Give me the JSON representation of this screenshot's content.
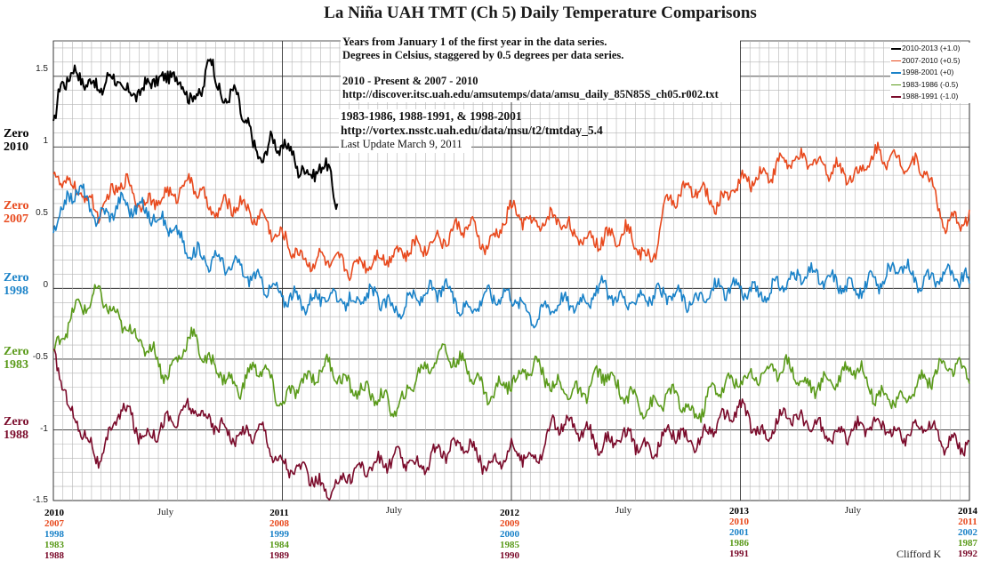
{
  "title": "La Niña UAH TMT (Ch 5) Daily Temperature Comparisons",
  "notes": {
    "line1": "Years from January 1 of the first year in the data series.",
    "line2": "Degrees in Celsius, staggered by 0.5 degrees per data series.",
    "line3": "2010 - Present & 2007 - 2010",
    "line4": "http://discover.itsc.uah.edu/amsutemps/data/amsu_daily_85N85S_ch05.r002.txt",
    "line5": "1983-1986, 1988-1991, & 1998-2001",
    "line6": "http://vortex.nsstc.uah.edu/data/msu/t2/tmtday_5.4",
    "line7": "Last Update March 9, 2011"
  },
  "credit": "Clifford K",
  "zero_labels": [
    {
      "word": "Zero",
      "year": "2010",
      "color": "#000000"
    },
    {
      "word": "Zero",
      "year": "2007",
      "color": "#e8491d"
    },
    {
      "word": "Zero",
      "year": "1998",
      "color": "#1a82c8"
    },
    {
      "word": "Zero",
      "year": "1983",
      "color": "#5a9a1a"
    },
    {
      "word": "Zero",
      "year": "1988",
      "color": "#7a0a2a"
    }
  ],
  "x_mid_labels": [
    "July",
    "July",
    "July",
    "July"
  ],
  "x_year_columns": [
    [
      "2010",
      "2007",
      "1998",
      "1983",
      "1988"
    ],
    [
      "2011",
      "2008",
      "1999",
      "1984",
      "1989"
    ],
    [
      "2012",
      "2009",
      "2000",
      "1985",
      "1990"
    ],
    [
      "2013",
      "2010",
      "2001",
      "1986",
      "1991"
    ],
    [
      "2014",
      "2011",
      "2002",
      "1987",
      "1992"
    ]
  ],
  "chart_data": {
    "type": "line",
    "title": "La Niña UAH TMT (Ch 5) Daily Temperature Comparisons",
    "xlabel": "",
    "ylabel": "",
    "x_range_years": [
      0,
      4
    ],
    "ylim": [
      -1.5,
      1.75
    ],
    "y_ticks": [
      "1.5",
      "1",
      "0.5",
      "0",
      "-0.5",
      "-1",
      "-1.5"
    ],
    "grid": true,
    "legend_position": "top-right",
    "series": [
      {
        "name": "2010-2013 (+1.0)",
        "offset": 1.0,
        "color": "#000000",
        "x": [
          0.0,
          0.04,
          0.08,
          0.12,
          0.16,
          0.2,
          0.24,
          0.28,
          0.32,
          0.36,
          0.4,
          0.44,
          0.48,
          0.52,
          0.56,
          0.6,
          0.64,
          0.68,
          0.72,
          0.76,
          0.8,
          0.84,
          0.88,
          0.92,
          0.96,
          1.0,
          1.04,
          1.08,
          1.12,
          1.16,
          1.2,
          1.24
        ],
        "y": [
          1.15,
          1.45,
          1.55,
          1.45,
          1.5,
          1.35,
          1.55,
          1.4,
          1.45,
          1.3,
          1.5,
          1.4,
          1.55,
          1.45,
          1.5,
          1.3,
          1.4,
          1.6,
          1.45,
          1.3,
          1.4,
          1.15,
          1.0,
          0.92,
          1.05,
          1.0,
          0.95,
          0.85,
          0.78,
          0.88,
          0.82,
          0.63
        ]
      },
      {
        "name": "2007-2010 (+0.5)",
        "offset": 0.5,
        "color": "#e8491d",
        "x": [
          0.0,
          0.1,
          0.2,
          0.3,
          0.4,
          0.5,
          0.6,
          0.7,
          0.8,
          0.9,
          1.0,
          1.1,
          1.2,
          1.3,
          1.4,
          1.5,
          1.6,
          1.7,
          1.8,
          1.9,
          2.0,
          2.1,
          2.2,
          2.3,
          2.4,
          2.5,
          2.6,
          2.7,
          2.8,
          2.9,
          3.0,
          3.1,
          3.2,
          3.3,
          3.4,
          3.5,
          3.6,
          3.7,
          3.8,
          3.9,
          4.0
        ],
        "y": [
          0.8,
          0.7,
          0.55,
          0.75,
          0.6,
          0.65,
          0.75,
          0.55,
          0.6,
          0.5,
          0.35,
          0.2,
          0.2,
          0.15,
          0.2,
          0.25,
          0.3,
          0.35,
          0.45,
          0.3,
          0.55,
          0.45,
          0.5,
          0.35,
          0.35,
          0.4,
          0.2,
          0.65,
          0.7,
          0.6,
          0.75,
          0.8,
          0.9,
          0.9,
          0.85,
          0.8,
          0.95,
          0.9,
          0.85,
          0.45,
          0.5
        ]
      },
      {
        "name": "1998-2001 (+0)",
        "offset": 0.0,
        "color": "#1a82c8",
        "x": [
          0.0,
          0.1,
          0.2,
          0.3,
          0.4,
          0.5,
          0.6,
          0.7,
          0.8,
          0.9,
          1.0,
          1.1,
          1.2,
          1.3,
          1.4,
          1.5,
          1.6,
          1.7,
          1.8,
          1.9,
          2.0,
          2.1,
          2.2,
          2.3,
          2.4,
          2.5,
          2.6,
          2.7,
          2.8,
          2.9,
          3.0,
          3.1,
          3.2,
          3.3,
          3.4,
          3.5,
          3.6,
          3.7,
          3.8,
          3.9,
          4.0
        ],
        "y": [
          0.45,
          0.7,
          0.5,
          0.6,
          0.55,
          0.45,
          0.25,
          0.2,
          0.15,
          0.05,
          -0.05,
          -0.1,
          -0.05,
          -0.1,
          -0.05,
          -0.15,
          -0.05,
          0.0,
          -0.15,
          -0.05,
          -0.05,
          -0.2,
          -0.1,
          -0.1,
          0.0,
          -0.1,
          -0.05,
          -0.05,
          -0.1,
          0.0,
          0.0,
          -0.05,
          0.05,
          0.1,
          0.05,
          0.0,
          0.05,
          0.15,
          0.05,
          0.1,
          0.05
        ]
      },
      {
        "name": "1983-1986 (-0.5)",
        "offset": -0.5,
        "color": "#5a9a1a",
        "x": [
          0.0,
          0.1,
          0.2,
          0.3,
          0.4,
          0.5,
          0.6,
          0.7,
          0.8,
          0.9,
          1.0,
          1.1,
          1.2,
          1.3,
          1.4,
          1.5,
          1.6,
          1.7,
          1.8,
          1.9,
          2.0,
          2.1,
          2.2,
          2.3,
          2.4,
          2.5,
          2.6,
          2.7,
          2.8,
          2.9,
          3.0,
          3.1,
          3.2,
          3.3,
          3.4,
          3.5,
          3.6,
          3.7,
          3.8,
          3.9,
          4.0
        ],
        "y": [
          -0.45,
          -0.15,
          -0.05,
          -0.25,
          -0.4,
          -0.6,
          -0.35,
          -0.55,
          -0.7,
          -0.55,
          -0.8,
          -0.65,
          -0.55,
          -0.7,
          -0.75,
          -0.85,
          -0.6,
          -0.45,
          -0.55,
          -0.75,
          -0.65,
          -0.55,
          -0.7,
          -0.75,
          -0.6,
          -0.75,
          -0.85,
          -0.75,
          -0.9,
          -0.7,
          -0.65,
          -0.6,
          -0.55,
          -0.7,
          -0.65,
          -0.55,
          -0.75,
          -0.8,
          -0.65,
          -0.55,
          -0.6
        ]
      },
      {
        "name": "1988-1991 (-1.0)",
        "offset": -1.0,
        "color": "#7a0a2a",
        "x": [
          0.0,
          0.1,
          0.2,
          0.3,
          0.4,
          0.5,
          0.6,
          0.7,
          0.8,
          0.9,
          1.0,
          1.1,
          1.2,
          1.3,
          1.4,
          1.5,
          1.6,
          1.7,
          1.8,
          1.9,
          2.0,
          2.1,
          2.2,
          2.3,
          2.4,
          2.5,
          2.6,
          2.7,
          2.8,
          2.9,
          3.0,
          3.1,
          3.2,
          3.3,
          3.4,
          3.5,
          3.6,
          3.7,
          3.8,
          3.9,
          4.0
        ],
        "y": [
          -0.5,
          -0.95,
          -1.2,
          -0.85,
          -1.05,
          -0.95,
          -0.85,
          -0.95,
          -1.05,
          -1.0,
          -1.25,
          -1.3,
          -1.45,
          -1.3,
          -1.25,
          -1.2,
          -1.25,
          -1.15,
          -1.1,
          -1.25,
          -1.15,
          -1.2,
          -0.95,
          -1.0,
          -1.1,
          -1.05,
          -1.15,
          -1.0,
          -1.1,
          -0.95,
          -0.85,
          -1.05,
          -0.9,
          -0.95,
          -1.05,
          -1.0,
          -0.95,
          -1.05,
          -0.95,
          -1.1,
          -1.1
        ]
      }
    ]
  }
}
